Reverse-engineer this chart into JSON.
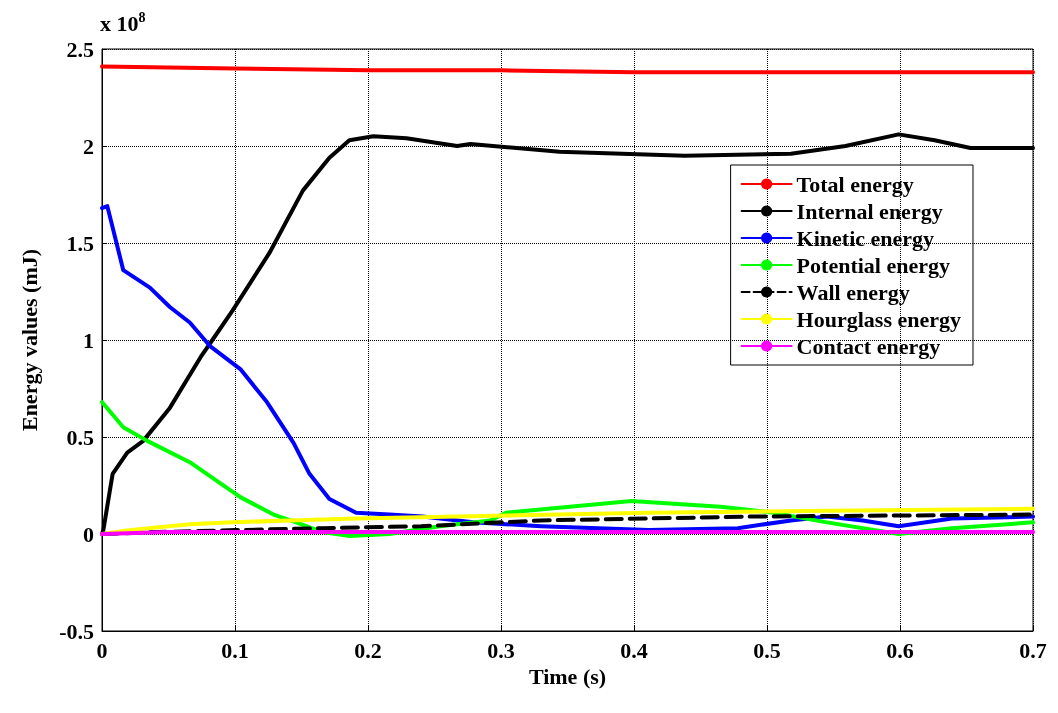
{
  "chart_data": {
    "type": "line",
    "xlabel": "Time (s)",
    "ylabel": "Energy values (mJ)",
    "annotations": [
      "x 10$^{8}$"
    ],
    "xlim": [
      0,
      0.7
    ],
    "xticks": [
      0,
      0.1,
      0.2,
      0.3,
      0.4,
      0.5,
      0.6,
      0.7
    ],
    "ylim": [
      -0.5,
      2.5
    ],
    "yticks": [
      -0.5,
      0,
      0.5,
      1,
      1.5,
      2,
      2.5
    ],
    "grid": true,
    "legend": "right",
    "marker": "none",
    "series": [
      {
        "name": "Total energy",
        "color": "#ff0000",
        "x": [
          0,
          0.1,
          0.2,
          0.3,
          0.4,
          0.5,
          0.6,
          0.7
        ],
        "values": [
          2.41,
          2.4,
          2.39,
          2.39,
          2.38,
          2.38,
          2.38,
          2.38
        ]
      },
      {
        "name": "Internal energy",
        "color": "#000000",
        "x": [
          0,
          0.001,
          0.008,
          0.019,
          0.031,
          0.051,
          0.074,
          0.083,
          0.098,
          0.126,
          0.151,
          0.171,
          0.186,
          0.204,
          0.229,
          0.267,
          0.277,
          0.344,
          0.438,
          0.518,
          0.559,
          0.599,
          0.626,
          0.653,
          0.7
        ],
        "values": [
          0,
          0.02,
          0.31,
          0.42,
          0.48,
          0.65,
          0.91,
          1.0,
          1.15,
          1.45,
          1.77,
          1.94,
          2.03,
          2.05,
          2.04,
          2.0,
          2.01,
          1.97,
          1.95,
          1.96,
          2.0,
          2.06,
          2.03,
          1.99,
          1.99
        ]
      },
      {
        "name": "Kinetic energy",
        "color": "#0000ff",
        "x": [
          0,
          0.004,
          0.016,
          0.036,
          0.051,
          0.066,
          0.081,
          0.104,
          0.124,
          0.144,
          0.156,
          0.171,
          0.191,
          0.216,
          0.241,
          0.279,
          0.33,
          0.411,
          0.478,
          0.518,
          0.545,
          0.572,
          0.599,
          0.639,
          0.7
        ],
        "values": [
          1.68,
          1.69,
          1.36,
          1.27,
          1.17,
          1.09,
          0.97,
          0.85,
          0.68,
          0.47,
          0.31,
          0.18,
          0.11,
          0.1,
          0.09,
          0.06,
          0.04,
          0.02,
          0.03,
          0.07,
          0.09,
          0.07,
          0.04,
          0.08,
          0.09
        ]
      },
      {
        "name": "Potential energy",
        "color": "#00ff00",
        "x": [
          0,
          0.016,
          0.034,
          0.066,
          0.104,
          0.129,
          0.146,
          0.166,
          0.186,
          0.216,
          0.254,
          0.292,
          0.304,
          0.398,
          0.465,
          0.505,
          0.545,
          0.599,
          0.639,
          0.7
        ],
        "values": [
          0.68,
          0.55,
          0.48,
          0.37,
          0.19,
          0.1,
          0.06,
          0.01,
          -0.01,
          0.0,
          0.04,
          0.07,
          0.11,
          0.17,
          0.14,
          0.11,
          0.06,
          0.0,
          0.03,
          0.06
        ]
      },
      {
        "name": "Wall energy",
        "color": "#000000",
        "line_style": "dashed",
        "x": [
          0,
          0.041,
          0.1,
          0.166,
          0.24,
          0.33,
          0.49,
          0.7
        ],
        "values": [
          0,
          0.01,
          0.02,
          0.03,
          0.04,
          0.07,
          0.09,
          0.1
        ]
      },
      {
        "name": "Hourglass energy",
        "color": "#ffff00",
        "x": [
          0,
          0.02,
          0.066,
          0.098,
          0.141,
          0.191,
          0.267,
          0.41,
          0.545,
          0.7
        ],
        "values": [
          0,
          0.02,
          0.05,
          0.06,
          0.07,
          0.08,
          0.09,
          0.11,
          0.12,
          0.13
        ]
      },
      {
        "name": "Contact energy",
        "color": "#ff00ff",
        "x": [
          0,
          0.05,
          0.3,
          0.7
        ],
        "values": [
          0,
          0.01,
          0.01,
          0.01
        ]
      }
    ]
  }
}
